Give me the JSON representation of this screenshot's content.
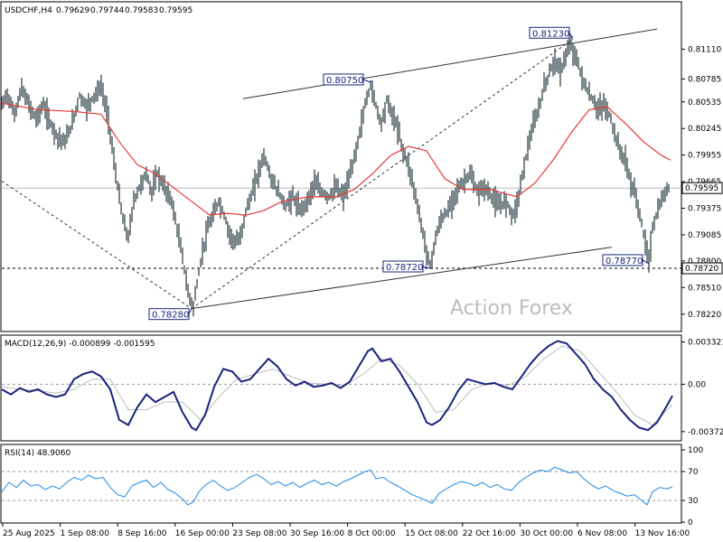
{
  "chart_data": {
    "type": "candlestick",
    "symbol_header": "USDCHF,H4",
    "ohlc_header": [
      "0.79629",
      "0.79744",
      "0.79583",
      "0.79595"
    ],
    "watermark": "Action Forex",
    "price_axis": {
      "range": [
        0.7806,
        0.8141
      ],
      "ticks": [
        "0.81110",
        "0.80785",
        "0.80535",
        "0.80245",
        "0.79955",
        "0.79665",
        "0.79375",
        "0.79085",
        "0.78800",
        "0.78510",
        "0.78220"
      ],
      "current_price": "0.79595",
      "support_label": "0.78720",
      "support_level": 0.7872
    },
    "time_axis": [
      "25 Aug 2025",
      "1 Sep 08:00",
      "8 Sep 16:00",
      "16 Sep 00:00",
      "23 Sep 08:00",
      "30 Sep 16:00",
      "8 Oct 00:00",
      "15 Oct 08:00",
      "22 Oct 16:00",
      "30 Oct 00:00",
      "6 Nov 08:00",
      "13 Nov 16:00"
    ],
    "annotations": [
      {
        "label": "0.78280",
        "value": 0.7828
      },
      {
        "label": "0.80750",
        "value": 0.8075
      },
      {
        "label": "0.78720",
        "value": 0.7872
      },
      {
        "label": "0.81230",
        "value": 0.8123
      },
      {
        "label": "0.78770",
        "value": 0.7877
      }
    ],
    "price_path": [
      [
        0,
        0.805
      ],
      [
        6,
        0.8062
      ],
      [
        14,
        0.804
      ],
      [
        22,
        0.8068
      ],
      [
        30,
        0.805
      ],
      [
        38,
        0.8035
      ],
      [
        46,
        0.805
      ],
      [
        54,
        0.803
      ],
      [
        62,
        0.8015
      ],
      [
        70,
        0.801
      ],
      [
        78,
        0.803
      ],
      [
        86,
        0.806
      ],
      [
        94,
        0.8048
      ],
      [
        102,
        0.806
      ],
      [
        110,
        0.807
      ],
      [
        118,
        0.8035
      ],
      [
        126,
        0.7975
      ],
      [
        134,
        0.7925
      ],
      [
        140,
        0.7905
      ],
      [
        146,
        0.7945
      ],
      [
        152,
        0.796
      ],
      [
        160,
        0.7975
      ],
      [
        166,
        0.7955
      ],
      [
        172,
        0.7975
      ],
      [
        180,
        0.796
      ],
      [
        188,
        0.7945
      ],
      [
        194,
        0.7915
      ],
      [
        200,
        0.7885
      ],
      [
        206,
        0.7845
      ],
      [
        212,
        0.783
      ],
      [
        216,
        0.7855
      ],
      [
        222,
        0.789
      ],
      [
        228,
        0.7915
      ],
      [
        234,
        0.793
      ],
      [
        240,
        0.7945
      ],
      [
        246,
        0.793
      ],
      [
        252,
        0.791
      ],
      [
        258,
        0.79
      ],
      [
        264,
        0.7905
      ],
      [
        270,
        0.7935
      ],
      [
        276,
        0.795
      ],
      [
        282,
        0.797
      ],
      [
        290,
        0.7995
      ],
      [
        298,
        0.797
      ],
      [
        306,
        0.7955
      ],
      [
        314,
        0.794
      ],
      [
        322,
        0.795
      ],
      [
        330,
        0.7935
      ],
      [
        338,
        0.7945
      ],
      [
        346,
        0.7965
      ],
      [
        354,
        0.7955
      ],
      [
        362,
        0.795
      ],
      [
        370,
        0.796
      ],
      [
        378,
        0.795
      ],
      [
        386,
        0.7975
      ],
      [
        394,
        0.801
      ],
      [
        402,
        0.805
      ],
      [
        408,
        0.8072
      ],
      [
        414,
        0.805
      ],
      [
        420,
        0.803
      ],
      [
        426,
        0.8055
      ],
      [
        432,
        0.804
      ],
      [
        438,
        0.8025
      ],
      [
        444,
        0.8
      ],
      [
        450,
        0.7985
      ],
      [
        456,
        0.796
      ],
      [
        462,
        0.793
      ],
      [
        468,
        0.79
      ],
      [
        474,
        0.7874
      ],
      [
        480,
        0.7905
      ],
      [
        486,
        0.7925
      ],
      [
        494,
        0.7935
      ],
      [
        502,
        0.7955
      ],
      [
        510,
        0.7965
      ],
      [
        518,
        0.7975
      ],
      [
        526,
        0.7955
      ],
      [
        534,
        0.796
      ],
      [
        542,
        0.795
      ],
      [
        550,
        0.794
      ],
      [
        558,
        0.7945
      ],
      [
        566,
        0.793
      ],
      [
        572,
        0.795
      ],
      [
        578,
        0.7985
      ],
      [
        586,
        0.802
      ],
      [
        594,
        0.8045
      ],
      [
        600,
        0.807
      ],
      [
        606,
        0.8085
      ],
      [
        612,
        0.81
      ],
      [
        618,
        0.8085
      ],
      [
        624,
        0.8105
      ],
      [
        630,
        0.8115
      ],
      [
        636,
        0.81
      ],
      [
        642,
        0.808
      ],
      [
        648,
        0.8065
      ],
      [
        654,
        0.8055
      ],
      [
        660,
        0.8045
      ],
      [
        666,
        0.805
      ],
      [
        672,
        0.804
      ],
      [
        678,
        0.802
      ],
      [
        684,
        0.8
      ],
      [
        690,
        0.799
      ],
      [
        696,
        0.7965
      ],
      [
        702,
        0.795
      ],
      [
        708,
        0.792
      ],
      [
        712,
        0.79
      ],
      [
        716,
        0.788
      ],
      [
        720,
        0.7915
      ],
      [
        726,
        0.7935
      ],
      [
        732,
        0.795
      ],
      [
        738,
        0.796
      ]
    ],
    "ma_path": [
      [
        0,
        0.8052
      ],
      [
        40,
        0.8045
      ],
      [
        80,
        0.8043
      ],
      [
        110,
        0.804
      ],
      [
        130,
        0.801
      ],
      [
        150,
        0.7985
      ],
      [
        170,
        0.7975
      ],
      [
        190,
        0.796
      ],
      [
        210,
        0.7945
      ],
      [
        230,
        0.793
      ],
      [
        250,
        0.7932
      ],
      [
        270,
        0.793
      ],
      [
        290,
        0.7935
      ],
      [
        310,
        0.7945
      ],
      [
        340,
        0.795
      ],
      [
        370,
        0.795
      ],
      [
        390,
        0.7958
      ],
      [
        410,
        0.7975
      ],
      [
        430,
        0.7995
      ],
      [
        450,
        0.8005
      ],
      [
        470,
        0.8
      ],
      [
        490,
        0.797
      ],
      [
        510,
        0.7958
      ],
      [
        540,
        0.7958
      ],
      [
        570,
        0.795
      ],
      [
        590,
        0.7965
      ],
      [
        610,
        0.799
      ],
      [
        630,
        0.802
      ],
      [
        650,
        0.8045
      ],
      [
        670,
        0.8048
      ],
      [
        690,
        0.803
      ],
      [
        710,
        0.801
      ],
      [
        730,
        0.7995
      ],
      [
        740,
        0.799
      ]
    ],
    "channel_upper": {
      "from": [
        267,
        0.8057
      ],
      "to": [
        725,
        0.8133
      ]
    },
    "channel_lower": {
      "from": [
        210,
        0.7828
      ],
      "to": [
        675,
        0.7895
      ]
    },
    "trendline_down": {
      "from": [
        0,
        0.7967
      ],
      "to": [
        210,
        0.7828
      ]
    },
    "trendline_up": {
      "from": [
        210,
        0.7828
      ],
      "to": [
        632,
        0.8122
      ]
    },
    "macd": {
      "header": "MACD(12,26,9) -0.000899 -0.001595",
      "range": [
        -0.0043,
        0.0035
      ],
      "ticks": [
        "0.003321",
        "0.00",
        "-0.003723"
      ],
      "zero_label": "0.00",
      "main_path": [
        [
          0,
          -0.0004
        ],
        [
          10,
          -0.0008
        ],
        [
          20,
          -0.0003
        ],
        [
          30,
          -0.0006
        ],
        [
          40,
          -0.0004
        ],
        [
          50,
          -0.0008
        ],
        [
          60,
          -0.001
        ],
        [
          70,
          -0.0008
        ],
        [
          80,
          0.0004
        ],
        [
          90,
          0.0008
        ],
        [
          100,
          0.001
        ],
        [
          110,
          0.0006
        ],
        [
          120,
          -0.0004
        ],
        [
          130,
          -0.0028
        ],
        [
          140,
          -0.0032
        ],
        [
          150,
          -0.0018
        ],
        [
          160,
          -0.0008
        ],
        [
          170,
          -0.0014
        ],
        [
          180,
          -0.001
        ],
        [
          190,
          -0.0006
        ],
        [
          200,
          -0.0022
        ],
        [
          210,
          -0.0034
        ],
        [
          215,
          -0.0036
        ],
        [
          225,
          -0.0024
        ],
        [
          235,
          -0.0002
        ],
        [
          245,
          0.0012
        ],
        [
          255,
          0.001
        ],
        [
          265,
          0.0002
        ],
        [
          275,
          0.0004
        ],
        [
          285,
          0.0012
        ],
        [
          295,
          0.002
        ],
        [
          305,
          0.0014
        ],
        [
          315,
          0.0004
        ],
        [
          325,
          -0.0001
        ],
        [
          335,
          0.0002
        ],
        [
          345,
          -0.0002
        ],
        [
          355,
          -0.0001
        ],
        [
          365,
          0.0001
        ],
        [
          375,
          -0.0003
        ],
        [
          385,
          0.0002
        ],
        [
          395,
          0.0014
        ],
        [
          405,
          0.0026
        ],
        [
          410,
          0.0028
        ],
        [
          420,
          0.0018
        ],
        [
          430,
          0.002
        ],
        [
          440,
          0.001
        ],
        [
          450,
          -0.0002
        ],
        [
          460,
          -0.0014
        ],
        [
          470,
          -0.003
        ],
        [
          476,
          -0.0032
        ],
        [
          485,
          -0.0028
        ],
        [
          495,
          -0.0018
        ],
        [
          505,
          -0.0005
        ],
        [
          515,
          0.0004
        ],
        [
          525,
          0.0002
        ],
        [
          535,
          0.0
        ],
        [
          545,
          0.0001
        ],
        [
          555,
          -0.0002
        ],
        [
          565,
          -0.0004
        ],
        [
          575,
          0.0006
        ],
        [
          585,
          0.0016
        ],
        [
          595,
          0.0024
        ],
        [
          605,
          0.003
        ],
        [
          615,
          0.0034
        ],
        [
          625,
          0.0032
        ],
        [
          635,
          0.0024
        ],
        [
          645,
          0.0016
        ],
        [
          655,
          0.0004
        ],
        [
          665,
          -0.0004
        ],
        [
          675,
          -0.001
        ],
        [
          685,
          -0.002
        ],
        [
          695,
          -0.0028
        ],
        [
          705,
          -0.0034
        ],
        [
          715,
          -0.0036
        ],
        [
          725,
          -0.003
        ],
        [
          735,
          -0.0018
        ],
        [
          742,
          -0.0009
        ]
      ],
      "signal_path": [
        [
          0,
          -0.0002
        ],
        [
          20,
          -0.0004
        ],
        [
          40,
          -0.0005
        ],
        [
          60,
          -0.0007
        ],
        [
          80,
          -0.0004
        ],
        [
          100,
          0.0004
        ],
        [
          120,
          0.0004
        ],
        [
          140,
          -0.002
        ],
        [
          160,
          -0.002
        ],
        [
          180,
          -0.0014
        ],
        [
          200,
          -0.0014
        ],
        [
          220,
          -0.0028
        ],
        [
          240,
          -0.001
        ],
        [
          260,
          0.0004
        ],
        [
          280,
          0.0008
        ],
        [
          300,
          0.0012
        ],
        [
          320,
          0.0006
        ],
        [
          340,
          0.0001
        ],
        [
          360,
          0.0
        ],
        [
          380,
          -0.0001
        ],
        [
          400,
          0.0008
        ],
        [
          420,
          0.002
        ],
        [
          440,
          0.0015
        ],
        [
          460,
          0.0
        ],
        [
          480,
          -0.0022
        ],
        [
          500,
          -0.002
        ],
        [
          520,
          -0.0004
        ],
        [
          540,
          0.0001
        ],
        [
          560,
          -0.0001
        ],
        [
          580,
          0.0006
        ],
        [
          600,
          0.002
        ],
        [
          620,
          0.003
        ],
        [
          640,
          0.0026
        ],
        [
          660,
          0.001
        ],
        [
          680,
          -0.0006
        ],
        [
          700,
          -0.0024
        ],
        [
          720,
          -0.0032
        ],
        [
          742,
          -0.0016
        ]
      ]
    },
    "rsi": {
      "header": "RSI(14) 48.9060",
      "range": [
        0,
        100
      ],
      "ticks": [
        "100",
        "70",
        "30",
        "0"
      ],
      "levels": [
        70,
        30
      ],
      "path": [
        [
          0,
          42
        ],
        [
          8,
          55
        ],
        [
          16,
          48
        ],
        [
          24,
          58
        ],
        [
          32,
          50
        ],
        [
          40,
          52
        ],
        [
          48,
          45
        ],
        [
          56,
          50
        ],
        [
          64,
          46
        ],
        [
          72,
          55
        ],
        [
          80,
          62
        ],
        [
          88,
          58
        ],
        [
          96,
          65
        ],
        [
          104,
          60
        ],
        [
          112,
          62
        ],
        [
          120,
          48
        ],
        [
          128,
          38
        ],
        [
          136,
          35
        ],
        [
          144,
          50
        ],
        [
          152,
          55
        ],
        [
          160,
          58
        ],
        [
          168,
          48
        ],
        [
          176,
          55
        ],
        [
          184,
          45
        ],
        [
          192,
          40
        ],
        [
          200,
          32
        ],
        [
          206,
          24
        ],
        [
          212,
          28
        ],
        [
          218,
          42
        ],
        [
          226,
          52
        ],
        [
          234,
          58
        ],
        [
          242,
          50
        ],
        [
          250,
          44
        ],
        [
          258,
          48
        ],
        [
          266,
          55
        ],
        [
          274,
          62
        ],
        [
          282,
          66
        ],
        [
          290,
          60
        ],
        [
          298,
          52
        ],
        [
          306,
          56
        ],
        [
          314,
          50
        ],
        [
          322,
          55
        ],
        [
          330,
          48
        ],
        [
          338,
          54
        ],
        [
          346,
          58
        ],
        [
          354,
          52
        ],
        [
          362,
          55
        ],
        [
          370,
          50
        ],
        [
          378,
          56
        ],
        [
          386,
          60
        ],
        [
          394,
          65
        ],
        [
          402,
          70
        ],
        [
          408,
          72
        ],
        [
          414,
          60
        ],
        [
          422,
          62
        ],
        [
          430,
          55
        ],
        [
          438,
          50
        ],
        [
          446,
          44
        ],
        [
          454,
          38
        ],
        [
          462,
          34
        ],
        [
          470,
          30
        ],
        [
          476,
          26
        ],
        [
          484,
          40
        ],
        [
          492,
          46
        ],
        [
          500,
          52
        ],
        [
          508,
          56
        ],
        [
          516,
          54
        ],
        [
          524,
          50
        ],
        [
          532,
          55
        ],
        [
          540,
          48
        ],
        [
          548,
          52
        ],
        [
          556,
          46
        ],
        [
          564,
          44
        ],
        [
          572,
          55
        ],
        [
          580,
          62
        ],
        [
          588,
          68
        ],
        [
          596,
          72
        ],
        [
          604,
          70
        ],
        [
          612,
          76
        ],
        [
          620,
          72
        ],
        [
          628,
          68
        ],
        [
          636,
          70
        ],
        [
          644,
          60
        ],
        [
          652,
          52
        ],
        [
          660,
          46
        ],
        [
          668,
          50
        ],
        [
          676,
          44
        ],
        [
          684,
          40
        ],
        [
          692,
          36
        ],
        [
          700,
          38
        ],
        [
          708,
          30
        ],
        [
          714,
          24
        ],
        [
          720,
          42
        ],
        [
          728,
          48
        ],
        [
          736,
          46
        ],
        [
          742,
          49
        ]
      ]
    }
  }
}
